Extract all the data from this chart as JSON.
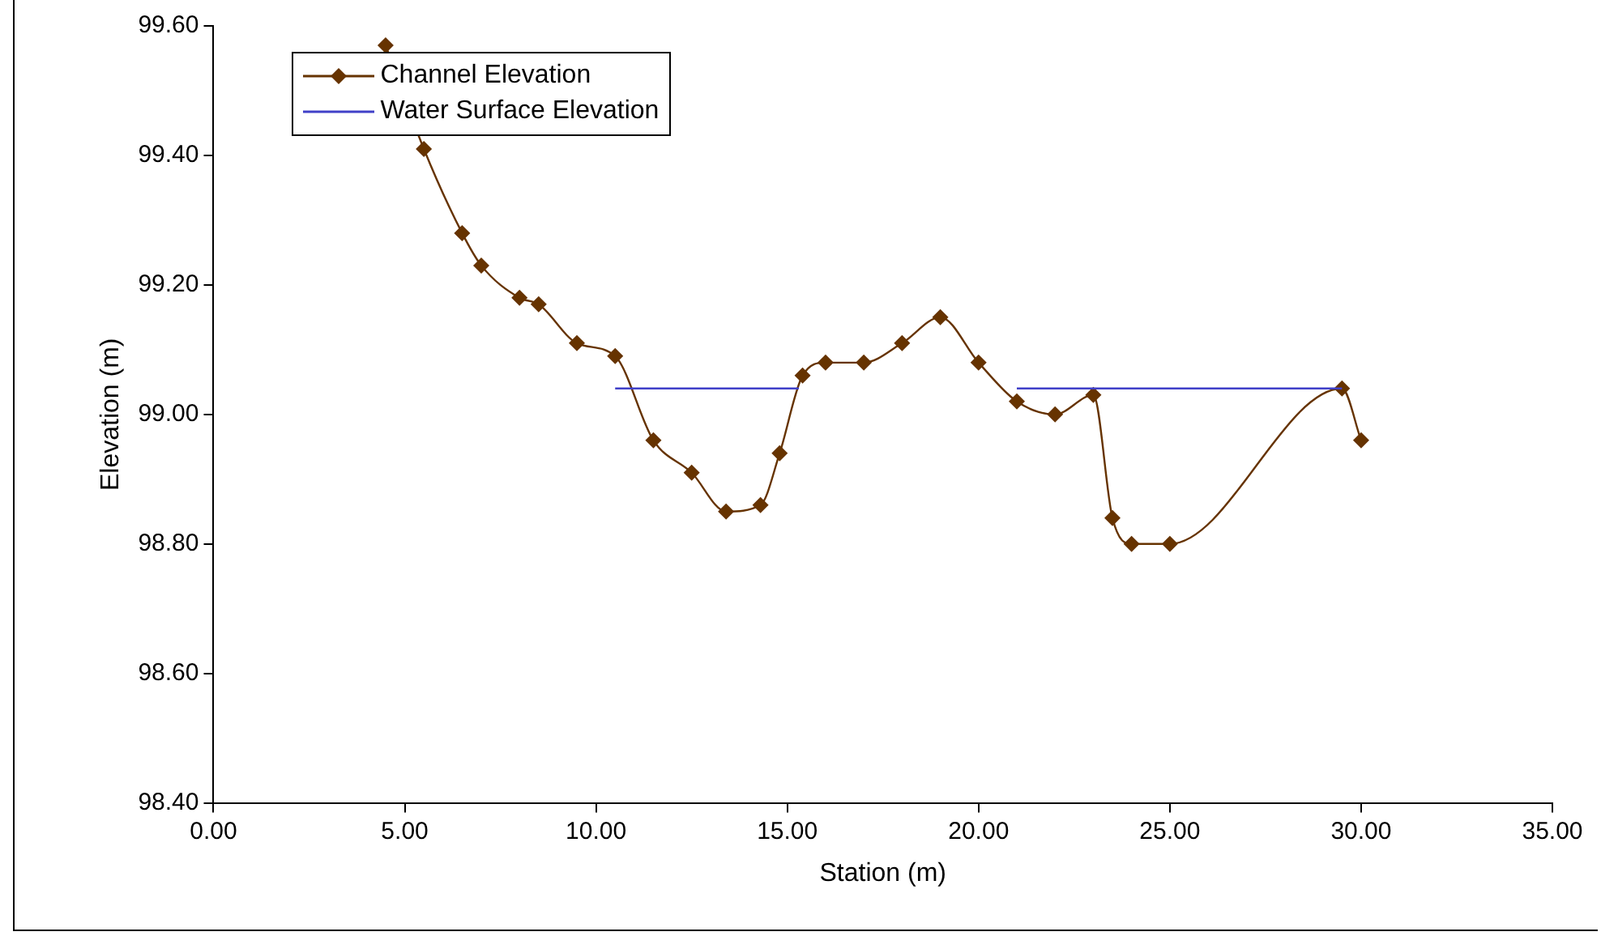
{
  "chart_data": {
    "type": "line",
    "xlabel": "Station (m)",
    "ylabel": "Elevation (m)",
    "xlim": [
      0,
      35
    ],
    "xticks": [
      {
        "value": 0,
        "label": "0.00"
      },
      {
        "value": 5,
        "label": "5.00"
      },
      {
        "value": 10,
        "label": "10.00"
      },
      {
        "value": 15,
        "label": "15.00"
      },
      {
        "value": 20,
        "label": "20.00"
      },
      {
        "value": 25,
        "label": "25.00"
      },
      {
        "value": 30,
        "label": "30.00"
      },
      {
        "value": 35,
        "label": "35.00"
      }
    ],
    "ylim": [
      98.4,
      99.6
    ],
    "yticks": [
      {
        "value": 98.4,
        "label": "98.40"
      },
      {
        "value": 98.6,
        "label": "98.60"
      },
      {
        "value": 98.8,
        "label": "98.80"
      },
      {
        "value": 99,
        "label": "99.00"
      },
      {
        "value": 99.2,
        "label": "99.20"
      },
      {
        "value": 99.4,
        "label": "99.40"
      },
      {
        "value": 99.6,
        "label": "99.60"
      }
    ],
    "grid": false,
    "legend": "top left",
    "series": [
      {
        "name": "Channel Elevation",
        "color": "#663300",
        "marker": "diamond",
        "x": [
          4.5,
          5.5,
          6.5,
          7,
          8,
          8.5,
          9.5,
          10.5,
          11.5,
          12.5,
          13.4,
          14.3,
          14.8,
          15.4,
          16,
          17,
          18,
          19,
          20,
          21,
          22,
          23,
          23.5,
          24,
          25,
          29.5,
          30
        ],
        "values": [
          99.57,
          99.41,
          99.28,
          99.23,
          99.18,
          99.17,
          99.11,
          99.09,
          98.96,
          98.91,
          98.85,
          98.86,
          98.94,
          99.06,
          99.08,
          99.08,
          99.11,
          99.15,
          99.08,
          99.02,
          99,
          99.03,
          98.84,
          98.8,
          98.8,
          99.04,
          98.96
        ]
      },
      {
        "name": "Water Surface Elevation",
        "color": "#4040c8",
        "marker": "none",
        "x": [
          10.5,
          15.3,
          18,
          21,
          29.5
        ],
        "values": [
          99.04,
          99.04,
          null,
          99.04,
          99.04
        ]
      }
    ]
  }
}
